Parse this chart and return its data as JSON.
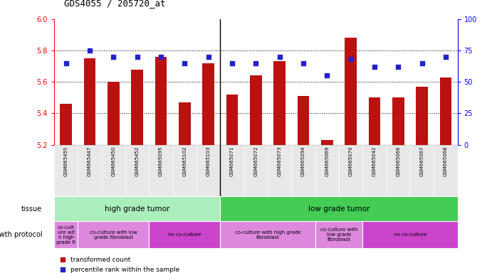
{
  "title": "GDS4055 / 205720_at",
  "samples": [
    "GSM665455",
    "GSM665447",
    "GSM665450",
    "GSM665452",
    "GSM665095",
    "GSM665102",
    "GSM665103",
    "GSM665071",
    "GSM665072",
    "GSM665073",
    "GSM665094",
    "GSM665069",
    "GSM665070",
    "GSM665042",
    "GSM665066",
    "GSM665067",
    "GSM665068"
  ],
  "bar_values": [
    5.46,
    5.75,
    5.6,
    5.68,
    5.76,
    5.47,
    5.72,
    5.52,
    5.64,
    5.73,
    5.51,
    5.23,
    5.88,
    5.5,
    5.5,
    5.57,
    5.63
  ],
  "dot_values": [
    65,
    75,
    70,
    70,
    70,
    65,
    70,
    65,
    65,
    70,
    65,
    55,
    68,
    62,
    62,
    65,
    70
  ],
  "bar_base": 5.2,
  "ylim_left": [
    5.2,
    6.0
  ],
  "ylim_right": [
    0,
    100
  ],
  "yticks_left": [
    5.2,
    5.4,
    5.6,
    5.8,
    6.0
  ],
  "yticks_right": [
    0,
    25,
    50,
    75,
    100
  ],
  "bar_color": "#bb1111",
  "dot_color": "#2222cc",
  "tissue_groups": [
    {
      "label": "high grade tumor",
      "start": 0,
      "end": 7,
      "color": "#aaeebb"
    },
    {
      "label": "low grade tumor",
      "start": 7,
      "end": 17,
      "color": "#44cc55"
    }
  ],
  "protocol_groups": [
    {
      "label": "co-cult\nure wit\nh high\ngrade fi",
      "start": 0,
      "end": 1,
      "color": "#dd88dd"
    },
    {
      "label": "co-culture with low\ngrade fibroblast",
      "start": 1,
      "end": 4,
      "color": "#dd88dd"
    },
    {
      "label": "no co-culture",
      "start": 4,
      "end": 7,
      "color": "#cc44cc"
    },
    {
      "label": "co-culture with high grade\nfibroblast",
      "start": 7,
      "end": 11,
      "color": "#dd88dd"
    },
    {
      "label": "co-culture with\nlow grade\nfibroblast",
      "start": 11,
      "end": 13,
      "color": "#dd88dd"
    },
    {
      "label": "no co-culture",
      "start": 13,
      "end": 17,
      "color": "#cc44cc"
    }
  ],
  "legend_bar_label": "transformed count",
  "legend_dot_label": "percentile rank within the sample",
  "high_grade_sep": 7,
  "n_samples": 17
}
